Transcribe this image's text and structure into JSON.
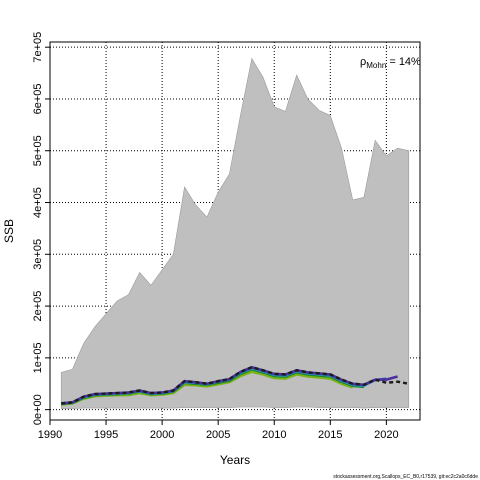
{
  "chart_data": {
    "type": "area",
    "xlabel": "Years",
    "ylabel": "SSB",
    "xlim": [
      1990,
      2023
    ],
    "ylim": [
      -20000,
      710000
    ],
    "x_ticks": [
      1990,
      1995,
      2000,
      2005,
      2010,
      2015,
      2020
    ],
    "y_ticks": [
      0,
      100000,
      200000,
      300000,
      400000,
      500000,
      600000,
      700000
    ],
    "y_tick_labels": [
      "0e+00",
      "1e+05",
      "2e+05",
      "3e+05",
      "4e+05",
      "5e+05",
      "6e+05",
      "7e+05"
    ],
    "grid": true,
    "annotation_rho_symbol": "ρ",
    "annotation_rho_sub": "Mohn",
    "annotation_rho_value": " = 14%",
    "footer": "stockassessment.org,Scallops_EC_B0,r17539, git:ec2c2a0c6dde",
    "band": {
      "color": "#bfbfbf",
      "x": [
        1991,
        1992,
        1993,
        1994,
        1995,
        1996,
        1997,
        1998,
        1999,
        2000,
        2001,
        2002,
        2003,
        2004,
        2005,
        2006,
        2007,
        2008,
        2009,
        2010,
        2011,
        2012,
        2013,
        2014,
        2015,
        2016,
        2017,
        2018,
        2019,
        2020,
        2021,
        2022
      ],
      "upper": [
        72000,
        78000,
        128000,
        160000,
        185000,
        210000,
        222000,
        265000,
        240000,
        270000,
        300000,
        430000,
        395000,
        372000,
        420000,
        455000,
        570000,
        678000,
        642000,
        585000,
        576000,
        646000,
        600000,
        578000,
        568000,
        505000,
        405000,
        410000,
        520000,
        490000,
        505000,
        500000
      ],
      "lower": [
        2000,
        2000,
        3000,
        3000,
        3000,
        3000,
        3000,
        3000,
        3000,
        3000,
        3000,
        4000,
        4000,
        4000,
        4000,
        4000,
        5000,
        5000,
        5000,
        4000,
        4000,
        5000,
        5000,
        4000,
        4000,
        4000,
        4000,
        3000,
        4000,
        4000,
        4000,
        4000
      ]
    },
    "series": [
      {
        "color": "#1c1c1c",
        "width": 2.5,
        "x": [
          1991,
          1992,
          1993,
          1994,
          1995,
          1996,
          1997,
          1998,
          1999,
          2000,
          2001,
          2002,
          2003,
          2004,
          2005,
          2006,
          2007,
          2008,
          2009,
          2010,
          2011,
          2012,
          2013,
          2014,
          2015,
          2016,
          2017,
          2018,
          2019,
          2020,
          2021,
          2022
        ],
        "y": [
          12000,
          14000,
          25000,
          30000,
          31000,
          32000,
          33000,
          37000,
          32000,
          33000,
          37000,
          55000,
          53000,
          50000,
          55000,
          59000,
          73000,
          82000,
          76000,
          69000,
          68000,
          76000,
          72000,
          70000,
          68000,
          58000,
          50000,
          48000,
          58000,
          52000,
          54000,
          50000
        ],
        "dash": "4,3"
      },
      {
        "color": "#4a2f9e",
        "width": 2.5,
        "x": [
          1991,
          1992,
          1993,
          1994,
          1995,
          1996,
          1997,
          1998,
          1999,
          2000,
          2001,
          2002,
          2003,
          2004,
          2005,
          2006,
          2007,
          2008,
          2009,
          2010,
          2011,
          2012,
          2013,
          2014,
          2015,
          2016,
          2017,
          2018,
          2019,
          2020,
          2021
        ],
        "y": [
          12000,
          14000,
          25000,
          30000,
          31000,
          32000,
          33000,
          37000,
          32000,
          33000,
          37000,
          55000,
          53000,
          50000,
          55000,
          59000,
          73000,
          82000,
          76000,
          69000,
          68000,
          76000,
          72000,
          70000,
          68000,
          58000,
          50000,
          48000,
          58000,
          58000,
          64000
        ]
      },
      {
        "color": "#2a6db8",
        "width": 2.5,
        "x": [
          1991,
          1992,
          1993,
          1994,
          1995,
          1996,
          1997,
          1998,
          1999,
          2000,
          2001,
          2002,
          2003,
          2004,
          2005,
          2006,
          2007,
          2008,
          2009,
          2010,
          2011,
          2012,
          2013,
          2014,
          2015,
          2016,
          2017,
          2018,
          2019,
          2020
        ],
        "y": [
          12000,
          14000,
          25000,
          30000,
          31000,
          32000,
          33000,
          36000,
          32000,
          33000,
          36000,
          54000,
          52000,
          50000,
          54000,
          58000,
          72000,
          81000,
          75000,
          68000,
          67000,
          75000,
          71000,
          69000,
          67000,
          57000,
          49000,
          47000,
          57000,
          60000
        ]
      },
      {
        "color": "#29a8c9",
        "width": 2.5,
        "x": [
          1991,
          1992,
          1993,
          1994,
          1995,
          1996,
          1997,
          1998,
          1999,
          2000,
          2001,
          2002,
          2003,
          2004,
          2005,
          2006,
          2007,
          2008,
          2009,
          2010,
          2011,
          2012,
          2013,
          2014,
          2015,
          2016,
          2017,
          2018,
          2019
        ],
        "y": [
          12000,
          14000,
          24000,
          29000,
          30000,
          31000,
          32000,
          36000,
          31000,
          32000,
          36000,
          53000,
          52000,
          49000,
          54000,
          58000,
          71000,
          80000,
          74000,
          67000,
          66000,
          74000,
          70000,
          68000,
          66000,
          56000,
          48000,
          46000,
          58000
        ]
      },
      {
        "color": "#1b7f2a",
        "width": 2.5,
        "x": [
          1991,
          1992,
          1993,
          1994,
          1995,
          1996,
          1997,
          1998,
          1999,
          2000,
          2001,
          2002,
          2003,
          2004,
          2005,
          2006,
          2007,
          2008,
          2009,
          2010,
          2011,
          2012,
          2013,
          2014,
          2015,
          2016,
          2017,
          2018
        ],
        "y": [
          11000,
          13000,
          23000,
          28000,
          29000,
          30000,
          31000,
          35000,
          30000,
          31000,
          35000,
          52000,
          50000,
          48000,
          52000,
          56000,
          69000,
          78000,
          72000,
          65000,
          64000,
          72000,
          68000,
          66000,
          64000,
          54000,
          46000,
          44000
        ]
      },
      {
        "color": "#7ab317",
        "width": 2.5,
        "x": [
          1991,
          1992,
          1993,
          1994,
          1995,
          1996,
          1997,
          1998,
          1999,
          2000,
          2001,
          2002,
          2003,
          2004,
          2005,
          2006,
          2007,
          2008,
          2009,
          2010,
          2011,
          2012,
          2013,
          2014,
          2015,
          2016,
          2017
        ],
        "y": [
          10000,
          12000,
          21000,
          26000,
          27000,
          28000,
          28000,
          32000,
          28000,
          29000,
          32000,
          48000,
          47000,
          45000,
          49000,
          53000,
          65000,
          73000,
          68000,
          61000,
          60000,
          68000,
          64000,
          62000,
          60000,
          50000,
          43000
        ]
      }
    ]
  }
}
